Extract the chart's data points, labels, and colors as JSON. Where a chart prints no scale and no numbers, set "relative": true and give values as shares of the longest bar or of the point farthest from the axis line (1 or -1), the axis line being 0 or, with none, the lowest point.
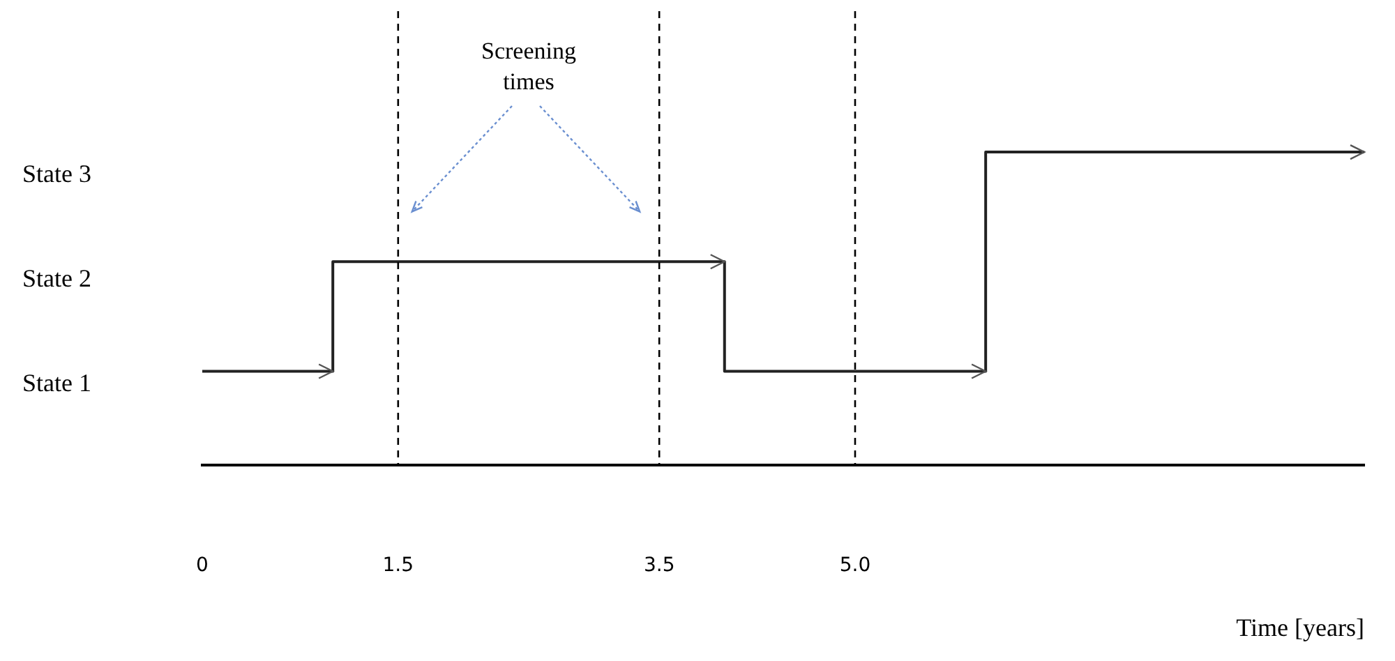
{
  "chart_data": {
    "type": "step",
    "xlabel": "Time [years]",
    "x": [
      0,
      1,
      4,
      6,
      8.9
    ],
    "values": [
      0.3,
      0.65,
      0.3,
      1,
      1
    ],
    "color": "#222222",
    "relative": true,
    "xlim": [
      0,
      8.9
    ],
    "xticks": [
      0,
      1.5,
      3.5,
      {
        "value": 5,
        "label": "5.0"
      }
    ],
    "ref_lines": [
      {
        "axis": "x",
        "value": 1.5,
        "line_style": "dashed",
        "color": "#000000"
      },
      {
        "axis": "x",
        "value": 3.5,
        "line_style": "dashed",
        "color": "#000000"
      },
      {
        "axis": "x",
        "value": 5,
        "line_style": "dashed",
        "color": "#000000"
      }
    ],
    "annotations": [
      "Screening times",
      "State 3",
      "State 2",
      "State 1"
    ],
    "grid": false,
    "legend": false,
    "marker": "none",
    "line_style": "solid"
  }
}
